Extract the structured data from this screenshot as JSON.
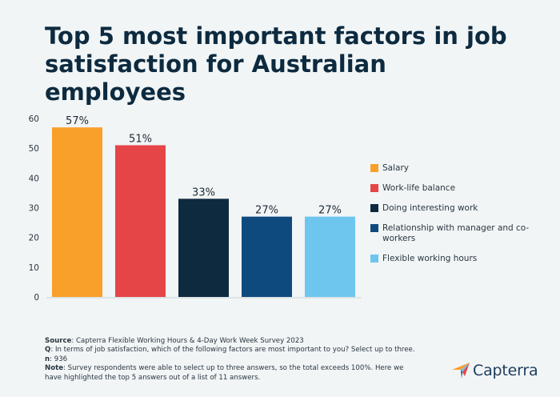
{
  "title": "Top 5 most important factors in job satisfaction for Australian employees",
  "chart_data": {
    "type": "bar",
    "categories": [
      "Salary",
      "Work-life balance",
      "Doing interesting work",
      "Relationship with manager and co-workers",
      "Flexible working hours"
    ],
    "values": [
      57,
      51,
      33,
      27,
      27
    ],
    "value_labels": [
      "57%",
      "51%",
      "33%",
      "27%",
      "27%"
    ],
    "colors": [
      "#f9a02b",
      "#e54547",
      "#0d2a3f",
      "#0f4a7f",
      "#6ec6ee"
    ],
    "ylim": [
      0,
      60
    ],
    "yticks": [
      0,
      10,
      20,
      30,
      40,
      50,
      60
    ],
    "xlabel": "",
    "ylabel": "",
    "legend_position": "right",
    "grid": false
  },
  "legend": {
    "items": [
      {
        "label": "Salary",
        "color": "#f9a02b"
      },
      {
        "label": "Work-life balance",
        "color": "#e54547"
      },
      {
        "label": "Doing interesting work",
        "color": "#0d2a3f"
      },
      {
        "label": "Relationship with manager and co-workers",
        "color": "#0f4a7f"
      },
      {
        "label": "Flexible working hours",
        "color": "#6ec6ee"
      }
    ]
  },
  "footer": {
    "source_label": "Source",
    "source_text": ": Capterra Flexible Working Hours & 4-Day Work Week Survey 2023",
    "q_label": "Q",
    "q_text": ": In terms of job satisfaction, which of the following factors are most important to you? Select up to three.",
    "n_label": "n",
    "n_text": ": 936",
    "note_label": "Note",
    "note_text": ": Survey respondents were able to select up to three answers, so the total exceeds 100%. Here we have highlighted the top 5 answers out of a list of 11 answers."
  },
  "logo": {
    "text": "Capterra",
    "colors": [
      "#ff9d28",
      "#68c5ed",
      "#044d80",
      "#e54747"
    ]
  }
}
